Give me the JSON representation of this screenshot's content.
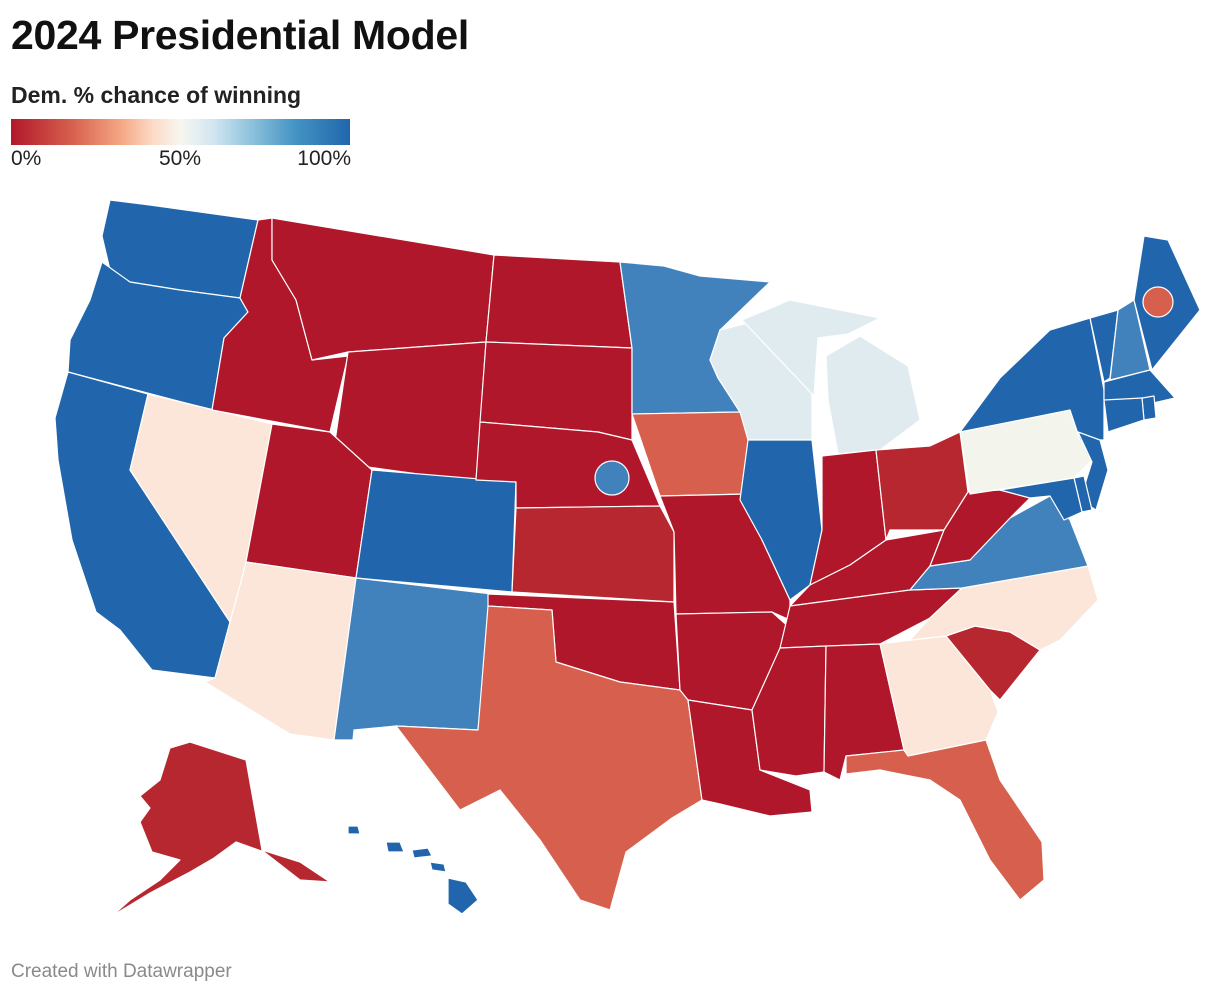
{
  "title": "2024 Presidential Model",
  "legend": {
    "title": "Dem. % chance of winning",
    "tick_min": "0%",
    "tick_mid": "50%",
    "tick_max": "100%"
  },
  "footer": "Created with Datawrapper",
  "colors": {
    "safe_rep": "#b0172a",
    "likely_rep": "#b7272f",
    "lean_rep": "#d6604d",
    "tilt_rep": "#fbe6d9",
    "tossup": "#f3f4ec",
    "tilt_dem": "#e0ebf0",
    "lean_dem": "#4182bd",
    "safe_dem": "#2166ac"
  },
  "states": {
    "WA": "safe_dem",
    "OR": "safe_dem",
    "CA": "safe_dem",
    "NV": "tilt_rep",
    "ID": "safe_rep",
    "MT": "safe_rep",
    "WY": "safe_rep",
    "UT": "safe_rep",
    "AZ": "tilt_rep",
    "CO": "safe_dem",
    "NM": "lean_dem",
    "ND": "safe_rep",
    "SD": "safe_rep",
    "NE": "safe_rep",
    "NE2": "lean_dem",
    "KS": "likely_rep",
    "OK": "safe_rep",
    "TX": "lean_rep",
    "MN": "lean_dem",
    "IA": "lean_rep",
    "MO": "safe_rep",
    "AR": "safe_rep",
    "LA": "safe_rep",
    "WI": "tilt_dem",
    "IL": "safe_dem",
    "MI": "tilt_dem",
    "IN": "safe_rep",
    "OH": "likely_rep",
    "KY": "safe_rep",
    "TN": "safe_rep",
    "MS": "safe_rep",
    "AL": "safe_rep",
    "GA": "tilt_rep",
    "FL": "lean_rep",
    "SC": "likely_rep",
    "NC": "tilt_rep",
    "VA": "lean_dem",
    "WV": "safe_rep",
    "PA": "tossup",
    "NY": "safe_dem",
    "VT": "safe_dem",
    "NH": "lean_dem",
    "ME": "safe_dem",
    "ME2": "lean_rep",
    "MA": "safe_dem",
    "RI": "safe_dem",
    "CT": "safe_dem",
    "NJ": "safe_dem",
    "DE": "safe_dem",
    "MD": "safe_dem",
    "AK": "likely_rep",
    "HI": "safe_dem"
  }
}
